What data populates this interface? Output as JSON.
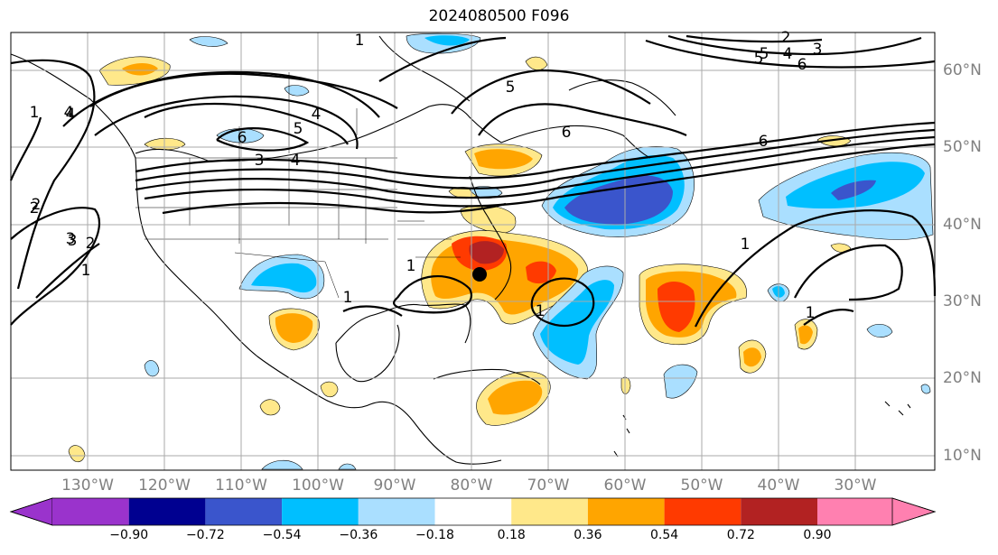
{
  "title": "2024080500 F096",
  "longitude_labels": [
    "130°W",
    "120°W",
    "110°W",
    "100°W",
    "90°W",
    "80°W",
    "70°W",
    "60°W",
    "50°W",
    "40°W",
    "30°W"
  ],
  "latitude_labels": [
    "60°N",
    "50°N",
    "40°N",
    "30°N",
    "20°N",
    "10°N"
  ],
  "colorbar": {
    "ticks": [
      "−0.90",
      "−0.72",
      "−0.54",
      "−0.36",
      "−0.18",
      "0.18",
      "0.36",
      "0.54",
      "0.72",
      "0.90"
    ],
    "colors": [
      "#9a33cc",
      "#000090",
      "#3a55cc",
      "#00bfff",
      "#aadfff",
      "#ffffff",
      "#ffe88a",
      "#ffa500",
      "#ff3a00",
      "#b22222",
      "#ff80b0"
    ]
  },
  "contour_labels": [
    "1",
    "2",
    "3",
    "4",
    "5",
    "6",
    "1",
    "4",
    "5",
    "6",
    "1",
    "2",
    "3",
    "4",
    "6",
    "5",
    "4",
    "3",
    "2",
    "1",
    "1",
    "1",
    "1",
    "1",
    "2",
    "3",
    "4",
    "5",
    "6"
  ],
  "markers": [
    {
      "name": "storm-center",
      "lon": -79.8,
      "lat": 33.6
    }
  ]
}
